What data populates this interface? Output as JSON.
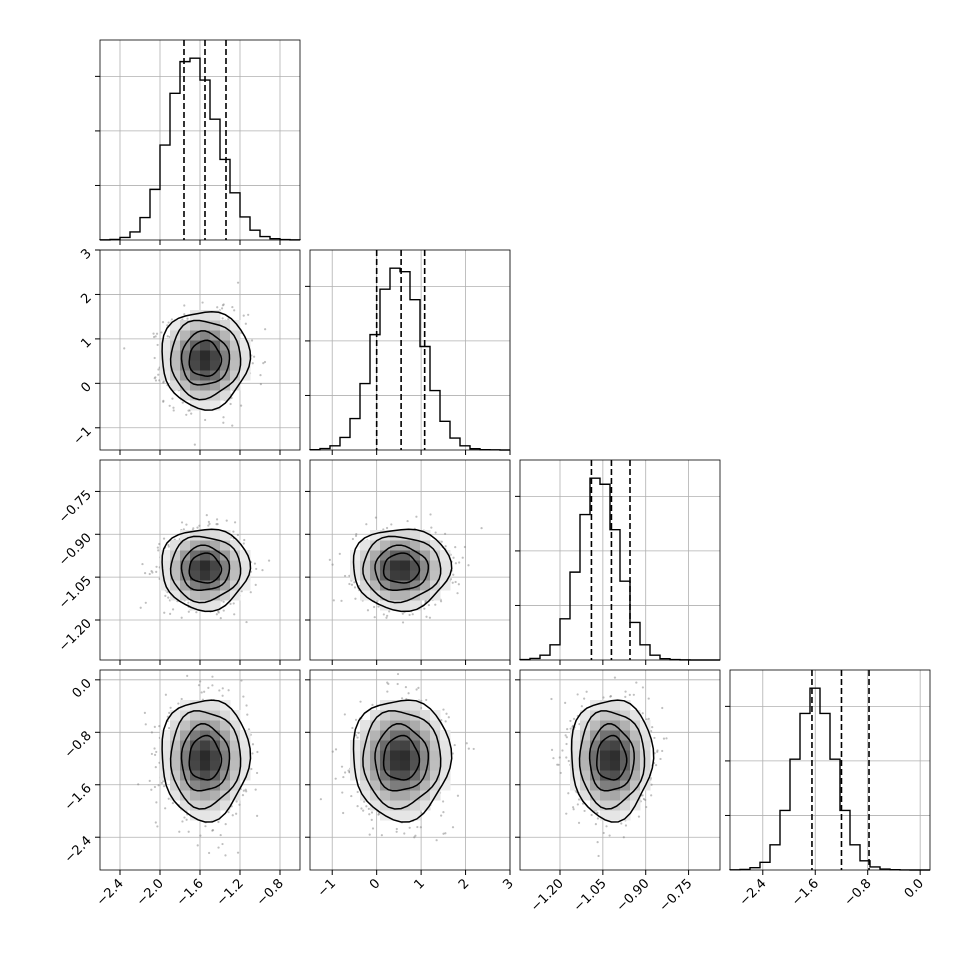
{
  "chart_data": {
    "type": "corner",
    "title": "",
    "parameters": [
      "",
      "",
      "",
      ""
    ],
    "grid": true,
    "scatter_color": "#7f7f7f",
    "line_color": "#000000",
    "means": [
      -1.55,
      0.55,
      -1.02,
      -1.2
    ],
    "sigmas": [
      0.2,
      0.5,
      0.065,
      0.42
    ],
    "quantiles": [
      [
        -1.76,
        -1.55,
        -1.34
      ],
      [
        0.0,
        0.55,
        1.08
      ],
      [
        -1.09,
        -1.02,
        -0.955
      ],
      [
        -1.65,
        -1.2,
        -0.78
      ]
    ],
    "axes": [
      {
        "range": [
          -2.6,
          -0.6
        ],
        "ticks": [
          -2.4,
          -2.0,
          -1.6,
          -1.2,
          -0.8
        ],
        "tick_labels": [
          "−2.4",
          "−2.0",
          "−1.6",
          "−1.2",
          "−0.8"
        ]
      },
      {
        "range": [
          -1.5,
          3.0
        ],
        "ticks": [
          -1,
          0,
          1,
          2,
          3
        ],
        "tick_labels": [
          "−1",
          "0",
          "1",
          "2",
          "3"
        ]
      },
      {
        "range": [
          -1.34,
          -0.64
        ],
        "ticks": [
          -1.2,
          -1.05,
          -0.9,
          -0.75
        ],
        "tick_labels": [
          "−1.20",
          "−1.05",
          "−0.90",
          "−0.75"
        ]
      },
      {
        "range": [
          -2.9,
          0.15
        ],
        "ticks": [
          -2.4,
          -1.6,
          -0.8,
          0.0
        ],
        "tick_labels": [
          "−2.4",
          "−1.6",
          "−0.8",
          "0.0"
        ]
      }
    ],
    "histograms": [
      {
        "param": 0,
        "bins": 20,
        "counts": [
          2,
          10,
          45,
          140,
          390,
          880,
          1650,
          2550,
          3100,
          3160,
          2780,
          2100,
          1400,
          820,
          400,
          170,
          60,
          22,
          8,
          2
        ]
      },
      {
        "param": 1,
        "bins": 20,
        "counts": [
          5,
          20,
          60,
          180,
          450,
          950,
          1650,
          2300,
          2600,
          2550,
          2150,
          1480,
          850,
          410,
          170,
          60,
          18,
          5,
          2,
          0
        ]
      },
      {
        "param": 2,
        "bins": 20,
        "counts": [
          8,
          25,
          80,
          250,
          680,
          1450,
          2400,
          3000,
          2900,
          2150,
          1300,
          620,
          250,
          80,
          22,
          6,
          2,
          0,
          0,
          0
        ]
      },
      {
        "param": 3,
        "bins": 20,
        "counts": [
          2,
          8,
          30,
          100,
          330,
          780,
          1450,
          2050,
          2380,
          2050,
          1450,
          780,
          330,
          120,
          40,
          12,
          4,
          1,
          0,
          0
        ]
      }
    ]
  }
}
